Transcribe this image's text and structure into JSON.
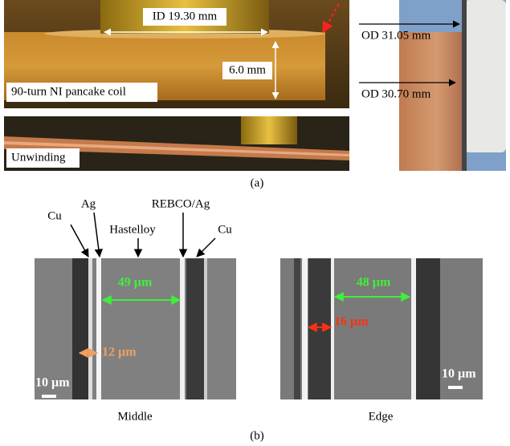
{
  "panel_a": {
    "coil_photo": {
      "inner_diameter": "ID 19.30 mm",
      "height": "6.0 mm",
      "caption": "90-turn NI pancake coil"
    },
    "unwinding_photo": {
      "caption": "Unwinding"
    },
    "outer_diameter_photo": {
      "outer_top": "OD 31.05 mm",
      "outer_bottom": "OD 30.70 mm"
    },
    "label": "(a)"
  },
  "panel_b": {
    "layer_labels": [
      "Cu",
      "Ag",
      "Hastelloy",
      "REBCO/Ag",
      "Cu"
    ],
    "middle": {
      "wide_width": "49 µm",
      "narrow_width": "12 µm",
      "scale_bar": "10 µm",
      "caption": "Middle"
    },
    "edge": {
      "wide_width": "48 µm",
      "narrow_width": "16 µm",
      "scale_bar": "10 µm",
      "caption": "Edge"
    },
    "label": "(b)"
  }
}
